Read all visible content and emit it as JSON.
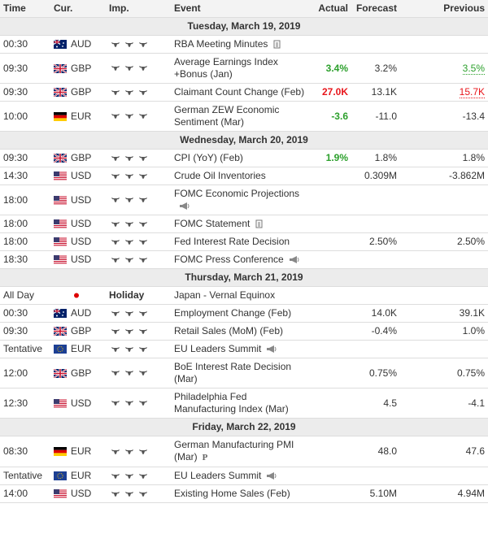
{
  "header": [
    "Time",
    "Cur.",
    "Imp.",
    "Event",
    "Actual",
    "Forecast",
    "Previous"
  ],
  "sections": [
    {
      "date": "Tuesday, March 19, 2019",
      "rows": [
        {
          "time": "00:30",
          "currency": "AUD",
          "event": "RBA Meeting Minutes",
          "icon": "document"
        },
        {
          "time": "09:30",
          "currency": "GBP",
          "event": "Average Earnings Index +Bonus (Jan)",
          "actual": "3.4%",
          "actual_color": "#2ca02c",
          "forecast": "3.2%",
          "previous": "3.5%",
          "previous_color": "#2ca02c"
        },
        {
          "time": "09:30",
          "currency": "GBP",
          "event": "Claimant Count Change (Feb)",
          "actual": "27.0K",
          "actual_color": "#e8141a",
          "forecast": "13.1K",
          "previous": "15.7K",
          "previous_color": "#e8141a"
        },
        {
          "time": "10:00",
          "currency": "EUR",
          "event": "German ZEW Economic Sentiment (Mar)",
          "actual": "-3.6",
          "actual_color": "#2ca02c",
          "forecast": "-11.0",
          "previous": "-13.4"
        }
      ]
    },
    {
      "date": "Wednesday, March 20, 2019",
      "rows": [
        {
          "time": "09:30",
          "currency": "GBP",
          "event": "CPI (YoY) (Feb)",
          "actual": "1.9%",
          "actual_color": "#2ca02c",
          "forecast": "1.8%",
          "previous": "1.8%"
        },
        {
          "time": "14:30",
          "currency": "USD",
          "event": "Crude Oil Inventories",
          "forecast": "0.309M",
          "previous": "-3.862M"
        },
        {
          "time": "18:00",
          "currency": "USD",
          "event": "FOMC Economic Projections",
          "icon": "speaker"
        },
        {
          "time": "18:00",
          "currency": "USD",
          "event": "FOMC Statement",
          "icon": "document"
        },
        {
          "time": "18:00",
          "currency": "USD",
          "event": "Fed Interest Rate Decision",
          "forecast": "2.50%",
          "previous": "2.50%"
        },
        {
          "time": "18:30",
          "currency": "USD",
          "event": "FOMC Press Conference",
          "icon": "speaker"
        }
      ]
    },
    {
      "date": "Thursday, March 21, 2019",
      "rows": [
        {
          "time": "All Day",
          "importance": "Holiday",
          "event": "Japan - Vernal Equinox"
        },
        {
          "time": "00:30",
          "currency": "AUD",
          "event": "Employment Change (Feb)",
          "forecast": "14.0K",
          "previous": "39.1K"
        },
        {
          "time": "09:30",
          "currency": "GBP",
          "event": "Retail Sales (MoM) (Feb)",
          "forecast": "-0.4%",
          "previous": "1.0%"
        },
        {
          "time": "Tentative",
          "currency": "EUR",
          "event": "EU Leaders Summit",
          "icon": "speaker"
        },
        {
          "time": "12:00",
          "currency": "GBP",
          "event": "BoE Interest Rate Decision (Mar)",
          "forecast": "0.75%",
          "previous": "0.75%"
        },
        {
          "time": "12:30",
          "currency": "USD",
          "event": "Philadelphia Fed Manufacturing Index (Mar)",
          "forecast": "4.5",
          "previous": "-4.1"
        }
      ]
    },
    {
      "date": "Friday, March 22, 2019",
      "rows": [
        {
          "time": "08:30",
          "currency": "EUR",
          "event": "German Manufacturing PMI (Mar)",
          "note": "P",
          "forecast": "48.0",
          "previous": "47.6"
        },
        {
          "time": "Tentative",
          "currency": "EUR",
          "event": "EU Leaders Summit",
          "icon": "speaker"
        },
        {
          "time": "14:00",
          "currency": "USD",
          "event": "Existing Home Sales (Feb)",
          "forecast": "5.10M",
          "previous": "4.94M"
        }
      ]
    }
  ]
}
